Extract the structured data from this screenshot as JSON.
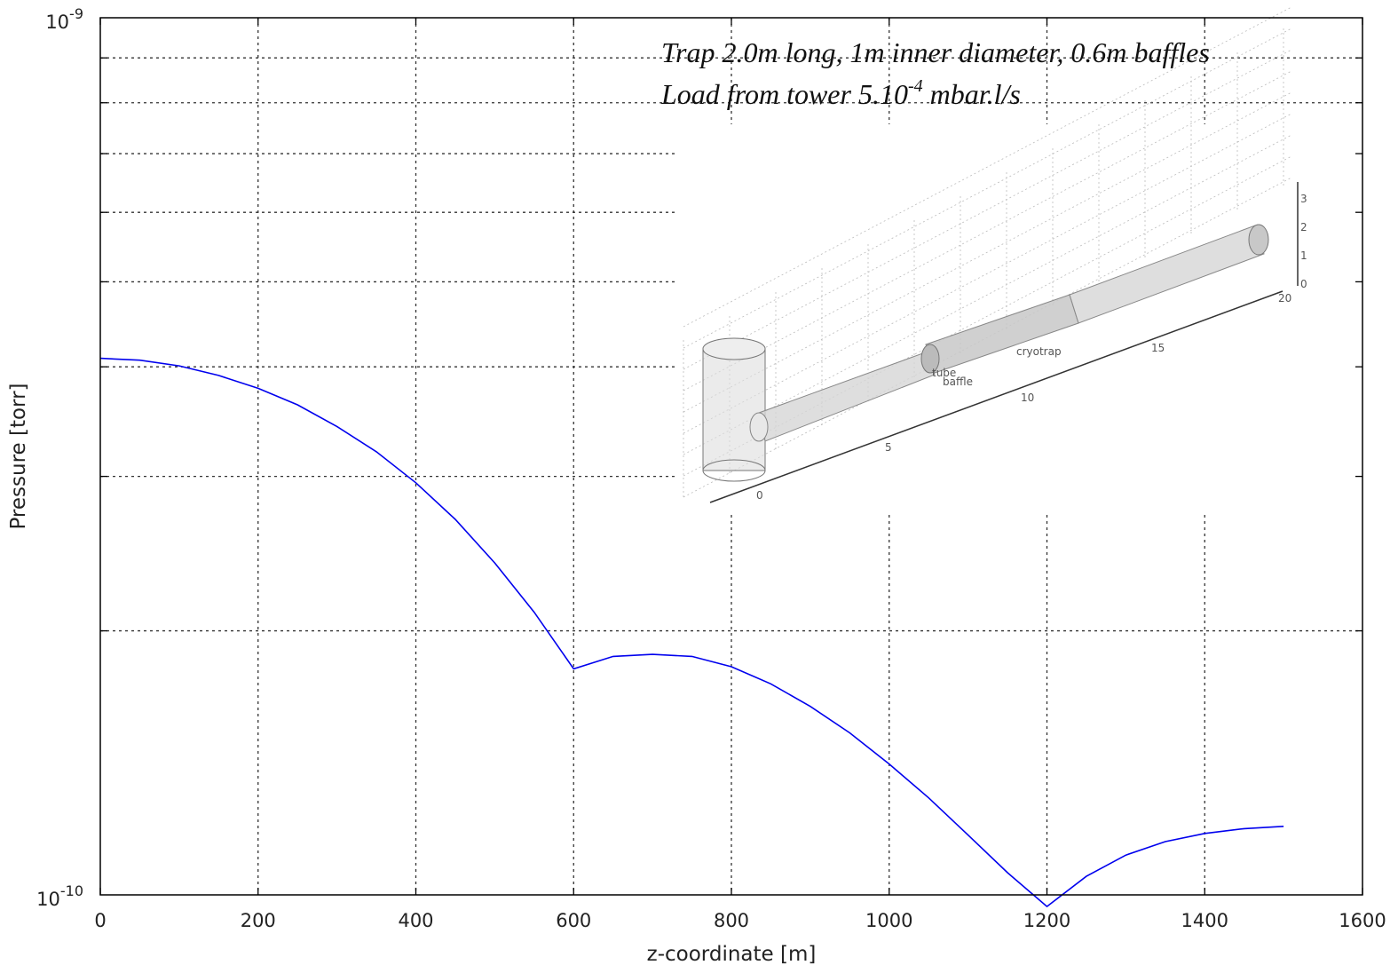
{
  "chart_data": {
    "type": "line",
    "xlabel": "z-coordinate [m]",
    "ylabel": "Pressure [torr]",
    "xlim": [
      0,
      1600
    ],
    "ylim": [
      1e-10,
      1e-09
    ],
    "yscale": "log",
    "grid": true,
    "x_ticks": [
      "0",
      "200",
      "400",
      "600",
      "800",
      "1000",
      "1200",
      "1400",
      "1600"
    ],
    "y_tick_base": "10",
    "y_ticks": [
      {
        "value": 1e-09,
        "exponent": "-9"
      },
      {
        "value": 1e-10,
        "exponent": "-10"
      }
    ],
    "annotation": {
      "line1": "Trap 2.0m long, 1m inner diameter, 0.6m baffles",
      "line2_pre": "Load from tower 5.10",
      "line2_sup": "-4",
      "line2_post": " mbar.l/s"
    },
    "series": [
      {
        "color": "#0000ee",
        "x": [
          0,
          50,
          100,
          150,
          200,
          250,
          300,
          350,
          400,
          450,
          500,
          550,
          600,
          650,
          700,
          750,
          800,
          850,
          900,
          950,
          1000,
          1050,
          1100,
          1150,
          1200,
          1250,
          1300,
          1350,
          1400,
          1450,
          1500
        ],
        "y": [
          4.09e-10,
          4.07e-10,
          4.01e-10,
          3.91e-10,
          3.78e-10,
          3.62e-10,
          3.42e-10,
          3.2e-10,
          2.95e-10,
          2.68e-10,
          2.39e-10,
          2.1e-10,
          1.81e-10,
          1.87e-10,
          1.88e-10,
          1.87e-10,
          1.82e-10,
          1.74e-10,
          1.64e-10,
          1.53e-10,
          1.41e-10,
          1.29e-10,
          1.17e-10,
          1.06e-10,
          9.7e-11,
          1.05e-10,
          1.11e-10,
          1.15e-10,
          1.175e-10,
          1.19e-10,
          1.197e-10
        ]
      }
    ]
  },
  "inset": {
    "labels": {
      "cryotrap": "cryotrap",
      "tube": "tube",
      "baffle": "baffle"
    },
    "length_ticks": [
      "0",
      "5",
      "10",
      "15",
      "20"
    ],
    "height_ticks": [
      "0",
      "1",
      "2",
      "3"
    ]
  }
}
